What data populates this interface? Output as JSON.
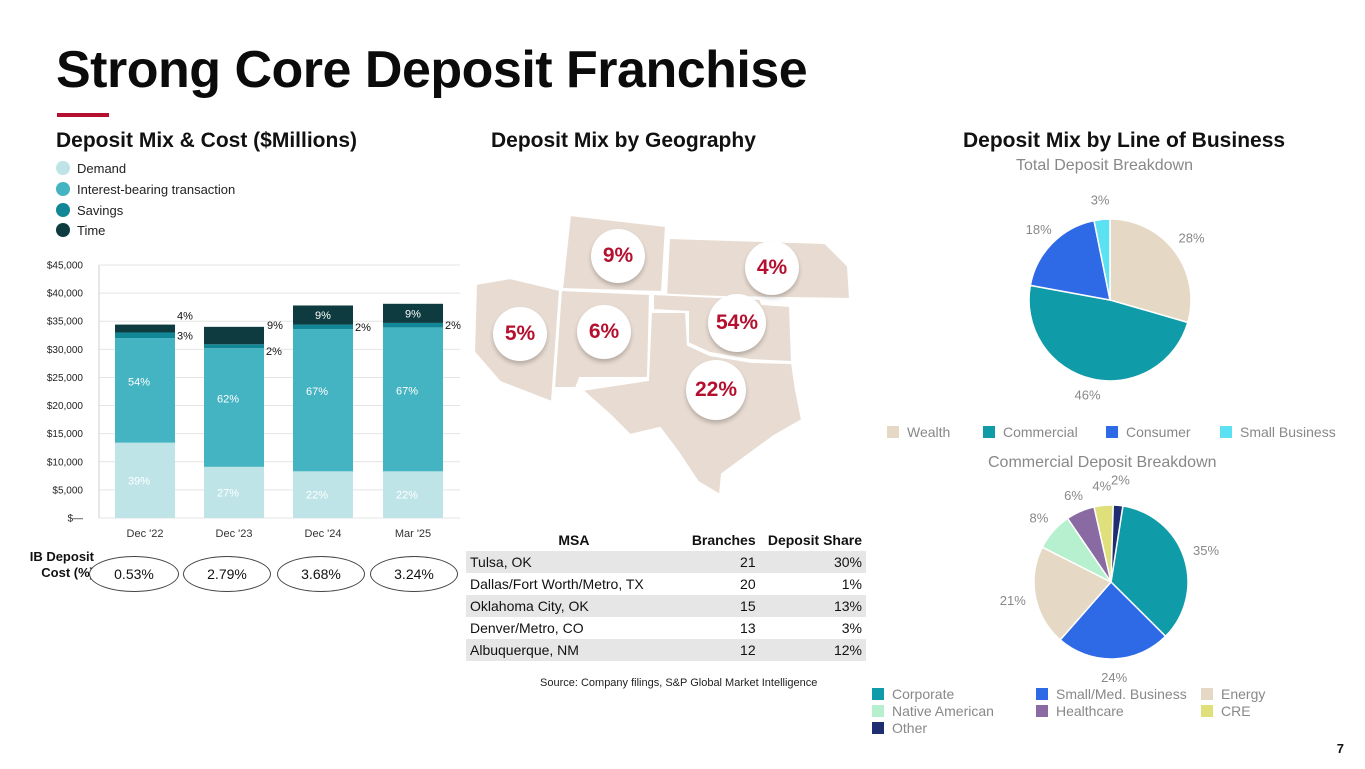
{
  "page": {
    "title": "Strong Core Deposit Franchise",
    "page_number": "7",
    "source": "Source: Company filings, S&P Global Market Intelligence"
  },
  "deposit_mix": {
    "heading": "Deposit Mix & Cost ($Millions)",
    "legend": [
      "Demand",
      "Interest-bearing transaction",
      "Savings",
      "Time"
    ],
    "ib_label_line1": "IB Deposit",
    "ib_label_line2": "Cost (%)",
    "ib_costs": [
      "0.53%",
      "2.79%",
      "3.68%",
      "3.24%"
    ]
  },
  "geography": {
    "heading": "Deposit Mix by Geography",
    "regions": [
      {
        "name": "Colorado",
        "share": "9%"
      },
      {
        "name": "Kansas",
        "share": "4%"
      },
      {
        "name": "Arizona",
        "share": "5%"
      },
      {
        "name": "New Mexico",
        "share": "6%"
      },
      {
        "name": "Oklahoma",
        "share": "54%"
      },
      {
        "name": "Texas",
        "share": "22%"
      }
    ],
    "table": {
      "headers": [
        "MSA",
        "Branches",
        "Deposit Share"
      ],
      "rows": [
        [
          "Tulsa, OK",
          "21",
          "30%"
        ],
        [
          "Dallas/Fort Worth/Metro, TX",
          "20",
          "1%"
        ],
        [
          "Oklahoma City, OK",
          "15",
          "13%"
        ],
        [
          "Denver/Metro, CO",
          "13",
          "3%"
        ],
        [
          "Albuquerque, NM",
          "12",
          "12%"
        ]
      ]
    }
  },
  "line_of_business": {
    "heading": "Deposit Mix by Line of Business",
    "total_title": "Total Deposit Breakdown",
    "commercial_title": "Commercial Deposit Breakdown",
    "total_legend": [
      "Wealth",
      "Commercial",
      "Consumer",
      "Small Business"
    ],
    "commercial_legend": [
      "Corporate",
      "Small/Med. Business",
      "Energy",
      "Native American",
      "Healthcare",
      "CRE",
      "Other"
    ]
  },
  "colors": {
    "demand": "#bfe4e8",
    "ib_transaction": "#45b4c2",
    "savings": "#108696",
    "time": "#0d3b3f",
    "accent": "#b5102f",
    "map_fill": "#e8dcd2",
    "wealth": "#e5d9c5",
    "commercial": "#0f9ba8",
    "consumer": "#2f6ae6",
    "small_business": "#5ce1f2",
    "corporate": "#0f9ba8",
    "small_med": "#2f6ae6",
    "energy": "#e5d9c5",
    "native_american": "#b6f0cf",
    "healthcare": "#8a6aa2",
    "cre": "#dfe07c",
    "other": "#1f2d73"
  },
  "chart_data": [
    {
      "type": "bar",
      "stacked": true,
      "title": "Deposit Mix & Cost ($Millions)",
      "categories": [
        "Dec '22",
        "Dec '23",
        "Dec '24",
        "Mar '25"
      ],
      "ylim": [
        0,
        45000
      ],
      "yticks": [
        0,
        5000,
        10000,
        15000,
        20000,
        25000,
        30000,
        35000,
        40000,
        45000
      ],
      "ytick_labels": [
        "$—",
        "$5,000",
        "$10,000",
        "$15,000",
        "$20,000",
        "$25,000",
        "$30,000",
        "$35,000",
        "$40,000",
        "$45,000"
      ],
      "series": [
        {
          "name": "Demand",
          "values": [
            13400,
            9100,
            8300,
            8300
          ],
          "labels": [
            "39%",
            "27%",
            "22%",
            "22%"
          ]
        },
        {
          "name": "Interest-bearing transaction",
          "values": [
            18600,
            21100,
            25300,
            25600
          ],
          "labels": [
            "54%",
            "62%",
            "67%",
            "67%"
          ]
        },
        {
          "name": "Savings",
          "values": [
            1000,
            700,
            800,
            800
          ],
          "labels": [
            "3%",
            "2%",
            "2%",
            "2%"
          ]
        },
        {
          "name": "Time",
          "values": [
            1400,
            3100,
            3400,
            3400
          ],
          "labels": [
            "4%",
            "9%",
            "9%",
            "9%"
          ]
        }
      ]
    },
    {
      "type": "pie",
      "title": "Total Deposit Breakdown",
      "labels": [
        "Wealth",
        "Commercial",
        "Consumer",
        "Small Business"
      ],
      "values": [
        28,
        46,
        18,
        3
      ],
      "value_labels": [
        "28%",
        "46%",
        "18%",
        "3%"
      ]
    },
    {
      "type": "pie",
      "title": "Commercial Deposit Breakdown",
      "labels": [
        "Corporate",
        "Small/Med. Business",
        "Energy",
        "Native American",
        "Healthcare",
        "CRE",
        "Other"
      ],
      "values": [
        35,
        24,
        21,
        8,
        6,
        4,
        2
      ],
      "value_labels": [
        "35%",
        "24%",
        "21%",
        "8%",
        "6%",
        "4%",
        "2%"
      ]
    }
  ]
}
